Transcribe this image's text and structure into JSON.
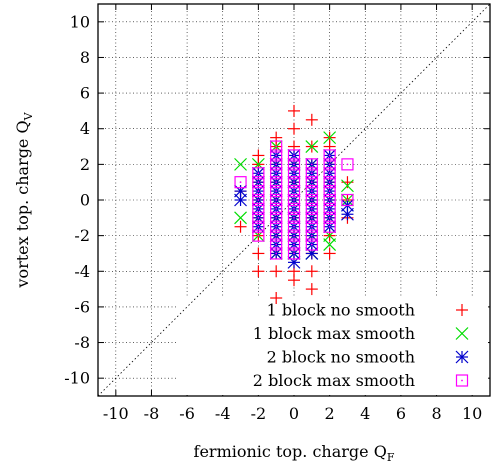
{
  "chart_data": {
    "type": "scatter",
    "title": "",
    "xlabel": "fermionic top. charge",
    "xlabel_subscript": "F",
    "xlabel_symbol": "Q",
    "ylabel": "vortex top. charge",
    "ylabel_symbol": "Q",
    "ylabel_subscript": "V",
    "xlim": [
      -11,
      11
    ],
    "ylim": [
      -11,
      11
    ],
    "xticks": [
      -10,
      -8,
      -6,
      -4,
      -2,
      0,
      2,
      4,
      6,
      8,
      10
    ],
    "yticks": [
      -10,
      -8,
      -6,
      -4,
      -2,
      0,
      2,
      4,
      6,
      8,
      10
    ],
    "grid": true,
    "diagonal_reference": true,
    "legend_position": "bottom-right",
    "series": [
      {
        "name": "1 block no smooth",
        "marker": "plus",
        "color": "#ff0000",
        "points": [
          [
            -3,
            -1.5
          ],
          [
            -3,
            0.5
          ],
          [
            -2,
            -4
          ],
          [
            -2,
            -3
          ],
          [
            -2,
            -2
          ],
          [
            -2,
            -1
          ],
          [
            -2,
            0
          ],
          [
            -2,
            1
          ],
          [
            -2,
            2
          ],
          [
            -2,
            2.5
          ],
          [
            -1,
            -5.5
          ],
          [
            -1,
            -4
          ],
          [
            -1,
            -3
          ],
          [
            -1,
            -2
          ],
          [
            -1,
            -1
          ],
          [
            -1,
            0
          ],
          [
            -1,
            1
          ],
          [
            -1,
            2
          ],
          [
            -1,
            3
          ],
          [
            -1,
            3.5
          ],
          [
            0,
            -4.5
          ],
          [
            0,
            -4
          ],
          [
            0,
            -3
          ],
          [
            0,
            -2
          ],
          [
            0,
            -1
          ],
          [
            0,
            0
          ],
          [
            0,
            1
          ],
          [
            0,
            2
          ],
          [
            0,
            3
          ],
          [
            0,
            4
          ],
          [
            0,
            5
          ],
          [
            1,
            -5
          ],
          [
            1,
            -4
          ],
          [
            1,
            -3
          ],
          [
            1,
            -2
          ],
          [
            1,
            -1
          ],
          [
            1,
            0
          ],
          [
            1,
            1
          ],
          [
            1,
            2
          ],
          [
            1,
            3
          ],
          [
            1,
            4.5
          ],
          [
            2,
            -3
          ],
          [
            2,
            -2
          ],
          [
            2,
            -1
          ],
          [
            2,
            0
          ],
          [
            2,
            1
          ],
          [
            2,
            2
          ],
          [
            2,
            3
          ],
          [
            2,
            3.5
          ],
          [
            3,
            -1
          ],
          [
            3,
            0
          ],
          [
            3,
            1
          ]
        ]
      },
      {
        "name": "1 block max smooth",
        "marker": "cross",
        "color": "#00dd00",
        "points": [
          [
            -3,
            2
          ],
          [
            -3,
            -1
          ],
          [
            -2,
            -2
          ],
          [
            -2,
            -1
          ],
          [
            -2,
            0
          ],
          [
            -2,
            1
          ],
          [
            -2,
            2
          ],
          [
            -1,
            -3
          ],
          [
            -1,
            -2
          ],
          [
            -1,
            -1
          ],
          [
            -1,
            0
          ],
          [
            -1,
            1
          ],
          [
            -1,
            2
          ],
          [
            -1,
            3
          ],
          [
            0,
            -3
          ],
          [
            0,
            -2
          ],
          [
            0,
            -1
          ],
          [
            0,
            0
          ],
          [
            0,
            1
          ],
          [
            0,
            2
          ],
          [
            1,
            -3
          ],
          [
            1,
            -2
          ],
          [
            1,
            -1
          ],
          [
            1,
            0
          ],
          [
            1,
            1
          ],
          [
            1,
            2
          ],
          [
            1,
            3
          ],
          [
            2,
            -2.5
          ],
          [
            2,
            -2
          ],
          [
            2,
            -1
          ],
          [
            2,
            0
          ],
          [
            2,
            1
          ],
          [
            2,
            2
          ],
          [
            2,
            3.5
          ],
          [
            3,
            0.8
          ],
          [
            3,
            0
          ]
        ]
      },
      {
        "name": "2 block no smooth",
        "marker": "star",
        "color": "#0000cc",
        "points": [
          [
            -3,
            0.5
          ],
          [
            -3,
            0
          ],
          [
            -2,
            -1.5
          ],
          [
            -2,
            -1
          ],
          [
            -2,
            -0.5
          ],
          [
            -2,
            0
          ],
          [
            -2,
            0.5
          ],
          [
            -2,
            1
          ],
          [
            -2,
            1.5
          ],
          [
            -1,
            -3
          ],
          [
            -1,
            -2.5
          ],
          [
            -1,
            -2
          ],
          [
            -1,
            -1.5
          ],
          [
            -1,
            -1
          ],
          [
            -1,
            -0.5
          ],
          [
            -1,
            0
          ],
          [
            -1,
            0.5
          ],
          [
            -1,
            1
          ],
          [
            -1,
            1.5
          ],
          [
            -1,
            2
          ],
          [
            -1,
            2.5
          ],
          [
            0,
            -3.5
          ],
          [
            0,
            -3
          ],
          [
            0,
            -2.5
          ],
          [
            0,
            -2
          ],
          [
            0,
            -1.5
          ],
          [
            0,
            -1
          ],
          [
            0,
            -0.5
          ],
          [
            0,
            0
          ],
          [
            0,
            0.5
          ],
          [
            0,
            1
          ],
          [
            0,
            1.5
          ],
          [
            0,
            2
          ],
          [
            0,
            2.5
          ],
          [
            1,
            -3
          ],
          [
            1,
            -2.5
          ],
          [
            1,
            -2
          ],
          [
            1,
            -1.5
          ],
          [
            1,
            -1
          ],
          [
            1,
            -0.5
          ],
          [
            1,
            0
          ],
          [
            1,
            0.5
          ],
          [
            1,
            1
          ],
          [
            1,
            1.5
          ],
          [
            1,
            2
          ],
          [
            2,
            -1.5
          ],
          [
            2,
            -1
          ],
          [
            2,
            -0.5
          ],
          [
            2,
            0
          ],
          [
            2,
            0.5
          ],
          [
            2,
            1
          ],
          [
            2,
            1.5
          ],
          [
            2,
            2
          ],
          [
            2,
            2.5
          ],
          [
            3,
            -0.8
          ],
          [
            3,
            -0.3
          ]
        ]
      },
      {
        "name": "2 block max smooth",
        "marker": "square-dot",
        "color": "#ff00ff",
        "points": [
          [
            -3,
            1
          ],
          [
            -2,
            -2
          ],
          [
            -2,
            -1.5
          ],
          [
            -2,
            -1
          ],
          [
            -2,
            -0.5
          ],
          [
            -2,
            0
          ],
          [
            -2,
            0.5
          ],
          [
            -2,
            1
          ],
          [
            -2,
            1.5
          ],
          [
            -1,
            -3
          ],
          [
            -1,
            -2.5
          ],
          [
            -1,
            -2
          ],
          [
            -1,
            -1.5
          ],
          [
            -1,
            -1
          ],
          [
            -1,
            -0.5
          ],
          [
            -1,
            0
          ],
          [
            -1,
            0.5
          ],
          [
            -1,
            1
          ],
          [
            -1,
            1.5
          ],
          [
            -1,
            2
          ],
          [
            -1,
            2.5
          ],
          [
            -1,
            3
          ],
          [
            0,
            -3
          ],
          [
            0,
            -2.5
          ],
          [
            0,
            -2
          ],
          [
            0,
            -1.5
          ],
          [
            0,
            -1
          ],
          [
            0,
            -0.5
          ],
          [
            0,
            0
          ],
          [
            0,
            0.5
          ],
          [
            0,
            1
          ],
          [
            0,
            1.5
          ],
          [
            0,
            2
          ],
          [
            0,
            2.5
          ],
          [
            1,
            -2.5
          ],
          [
            1,
            -2
          ],
          [
            1,
            -1.5
          ],
          [
            1,
            -1
          ],
          [
            1,
            -0.5
          ],
          [
            1,
            0
          ],
          [
            1,
            0.5
          ],
          [
            1,
            1
          ],
          [
            1,
            1.5
          ],
          [
            1,
            2
          ],
          [
            2,
            -1.5
          ],
          [
            2,
            -1
          ],
          [
            2,
            -0.5
          ],
          [
            2,
            0
          ],
          [
            2,
            0.5
          ],
          [
            2,
            1
          ],
          [
            2,
            1.5
          ],
          [
            2,
            2
          ],
          [
            2,
            2.5
          ],
          [
            3,
            2
          ],
          [
            3,
            0
          ]
        ]
      }
    ]
  }
}
